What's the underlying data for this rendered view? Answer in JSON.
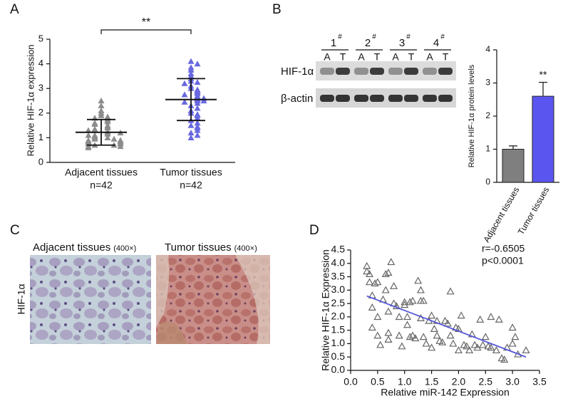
{
  "panel_labels": [
    "A",
    "B",
    "C",
    "D"
  ],
  "chart_data": [
    {
      "type": "strip",
      "y_label": "Relative HIF-1α expression",
      "categories": [
        "Adjacent tissues",
        "Tumor tissues"
      ],
      "category_notes": [
        "n=42",
        "n=42"
      ],
      "groups": [
        {
          "color": "#8c8c8c",
          "values": [
            2.5,
            2.3,
            2.1,
            2.0,
            1.9,
            1.85,
            1.8,
            1.75,
            1.7,
            1.65,
            1.6,
            1.55,
            1.5,
            1.45,
            1.4,
            1.35,
            1.3,
            1.25,
            1.2,
            1.15,
            1.1,
            1.05,
            1.0,
            1.0,
            0.95,
            0.95,
            0.9,
            0.9,
            0.85,
            0.85,
            0.8,
            0.8,
            0.75,
            0.75,
            0.7,
            0.7,
            0.65,
            0.65,
            0.6,
            1.1,
            1.2,
            1.3
          ],
          "mean": 1.22,
          "sd": 0.52
        },
        {
          "color": "#6868e0",
          "values": [
            4.1,
            4.0,
            3.85,
            3.75,
            3.6,
            3.5,
            3.4,
            3.3,
            3.25,
            3.2,
            3.1,
            3.0,
            2.95,
            2.9,
            2.85,
            2.8,
            2.7,
            2.65,
            2.6,
            2.55,
            2.5,
            2.45,
            2.4,
            2.3,
            2.2,
            2.1,
            2.0,
            1.95,
            1.9,
            1.8,
            1.7,
            1.6,
            1.5,
            1.45,
            1.4,
            1.3,
            1.2,
            1.1,
            1.0,
            2.6,
            2.75,
            2.5
          ],
          "mean": 2.55,
          "sd": 0.85
        }
      ],
      "ylim": [
        0,
        5
      ],
      "yticks": [
        0,
        1,
        2,
        3,
        4,
        5
      ],
      "significance": "**"
    },
    {
      "type": "bar",
      "y_label": "Relative HIF-1α protein levels",
      "categories": [
        "Adjacent tissues",
        "Tumor tissues"
      ],
      "values": [
        1.0,
        2.6
      ],
      "errors": [
        0.1,
        0.42
      ],
      "colors": [
        "#7f7f7f",
        "#5b55f0"
      ],
      "ylim": [
        0,
        4
      ],
      "yticks": [
        0,
        1,
        2,
        3,
        4
      ],
      "significance": "**"
    },
    {
      "type": "scatter",
      "x_label": "Relative miR-142 Expression",
      "y_label": "Relative HIF-1α Expression",
      "x": [
        0.3,
        0.3,
        0.35,
        0.35,
        0.4,
        0.4,
        0.4,
        0.45,
        0.5,
        0.5,
        0.5,
        0.55,
        0.6,
        0.65,
        0.65,
        0.7,
        0.7,
        0.7,
        0.7,
        0.75,
        0.8,
        0.8,
        0.85,
        0.9,
        0.9,
        0.95,
        1.0,
        1.0,
        1.05,
        1.05,
        1.1,
        1.1,
        1.15,
        1.15,
        1.2,
        1.25,
        1.3,
        1.3,
        1.3,
        1.35,
        1.35,
        1.4,
        1.45,
        1.5,
        1.5,
        1.55,
        1.6,
        1.6,
        1.65,
        1.7,
        1.75,
        1.8,
        1.85,
        1.85,
        1.9,
        1.95,
        2.0,
        2.0,
        2.05,
        2.1,
        2.15,
        2.2,
        2.25,
        2.3,
        2.35,
        2.4,
        2.45,
        2.5,
        2.55,
        2.6,
        2.6,
        2.7,
        2.75,
        2.8,
        2.85,
        2.9,
        3.0,
        3.0,
        3.05,
        3.1,
        3.25
      ],
      "y": [
        3.9,
        3.7,
        3.6,
        3.3,
        2.8,
        2.35,
        1.6,
        3.25,
        3.3,
        2.0,
        1.3,
        0.95,
        2.65,
        3.6,
        3.0,
        3.65,
        2.2,
        1.4,
        1.15,
        4.05,
        3.15,
        2.5,
        2.4,
        2.0,
        1.3,
        0.9,
        2.55,
        2.45,
        2.0,
        1.7,
        2.55,
        1.25,
        2.6,
        1.3,
        1.2,
        3.35,
        3.0,
        2.6,
        1.95,
        2.6,
        1.25,
        1.0,
        1.85,
        2.05,
        0.85,
        1.55,
        1.85,
        1.3,
        1.1,
        1.05,
        1.85,
        1.75,
        2.95,
        1.3,
        1.0,
        1.6,
        1.55,
        0.75,
        2.05,
        0.95,
        0.9,
        0.75,
        1.35,
        0.95,
        0.85,
        1.9,
        0.95,
        1.25,
        0.9,
        2.0,
        0.85,
        0.75,
        1.9,
        0.45,
        0.4,
        0.85,
        1.6,
        1.0,
        1.25,
        0.6,
        0.75
      ],
      "color": "#666666",
      "xlim": [
        0,
        3.5
      ],
      "xticks": [
        {
          "value": 0,
          "label": "0.0"
        },
        {
          "value": 0.5,
          "label": "0.5"
        },
        {
          "value": 1,
          "label": "1.0"
        },
        {
          "value": 1.5,
          "label": "1.5"
        },
        {
          "value": 2,
          "label": "2.0"
        },
        {
          "value": 2.5,
          "label": "2.5"
        },
        {
          "value": 3,
          "label": "3.0"
        },
        {
          "value": 3.5,
          "label": "3.5"
        }
      ],
      "ylim": [
        0,
        4.5
      ],
      "yticks": [
        {
          "value": 0,
          "label": "0.0"
        },
        {
          "value": 0.5,
          "label": "0.5"
        },
        {
          "value": 1,
          "label": "1.0"
        },
        {
          "value": 1.5,
          "label": "1.5"
        },
        {
          "value": 2,
          "label": "2.0"
        },
        {
          "value": 2.5,
          "label": "2.5"
        },
        {
          "value": 3,
          "label": "3.0"
        },
        {
          "value": 3.5,
          "label": "3.5"
        },
        {
          "value": 4,
          "label": "4.0"
        },
        {
          "value": 4.5,
          "label": "4.5"
        }
      ],
      "annotations": [
        "r=-0.6505",
        "p<0.0001"
      ],
      "fit": {
        "x": [
          0.3,
          3.25
        ],
        "y": [
          2.78,
          0.5
        ],
        "color": "#5555dd"
      }
    }
  ],
  "blot": {
    "lanes": [
      {
        "number": "1",
        "mark": "#"
      },
      {
        "number": "2",
        "mark": "#"
      },
      {
        "number": "3",
        "mark": "#"
      },
      {
        "number": "4",
        "mark": "#"
      }
    ],
    "lane_letters": [
      "A",
      "T"
    ],
    "rows": [
      "HIF-1α",
      "β-actin"
    ]
  },
  "histology": {
    "row_label": "HIF-1α",
    "images": [
      {
        "title": "Adjacent tissues",
        "magnification": "(400×)"
      },
      {
        "title": "Tumor tissues",
        "magnification": "(400×)"
      }
    ]
  }
}
